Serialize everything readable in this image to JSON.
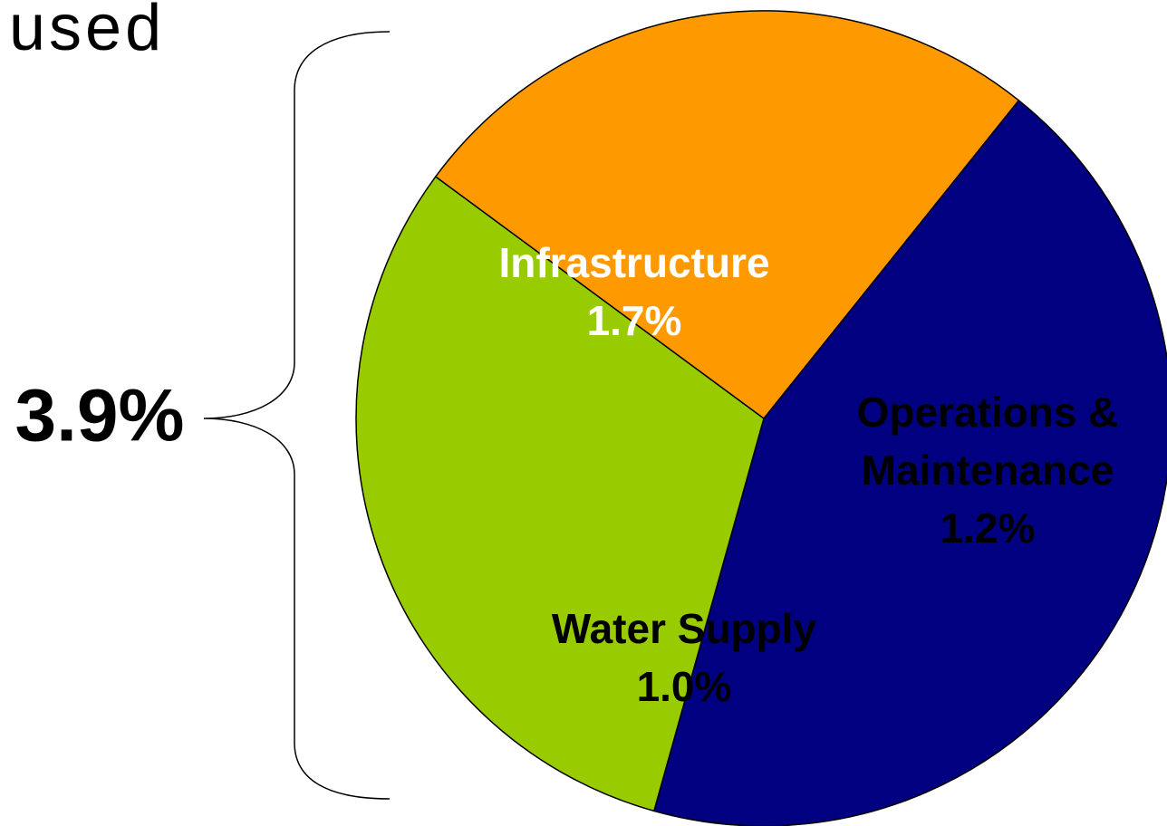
{
  "chart_data": {
    "type": "pie",
    "title": "used",
    "categories": [
      "Infrastructure",
      "Operations & Maintenance",
      "Water Supply"
    ],
    "values": [
      1.7,
      1.2,
      1.0
    ],
    "value_labels": [
      "1.7%",
      "1.2%",
      "1.0%"
    ],
    "colors": [
      "#000080",
      "#99cc00",
      "#ff9900"
    ],
    "label_colors": [
      "#ffffff",
      "#000000",
      "#000000"
    ],
    "annotation": "3.9%"
  }
}
